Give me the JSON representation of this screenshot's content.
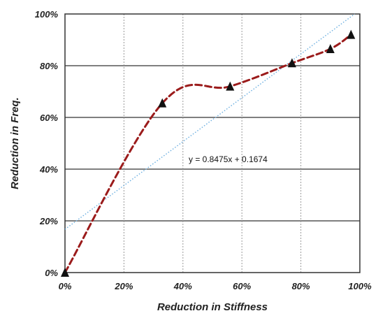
{
  "chart_data": {
    "type": "line",
    "title": "",
    "xlabel": "Reduction in Stiffness",
    "ylabel": "Reduction in Freq.",
    "xlim": [
      0,
      100
    ],
    "ylim": [
      0,
      100
    ],
    "x_ticks": [
      "0%",
      "20%",
      "40%",
      "60%",
      "80%",
      "100%"
    ],
    "y_ticks": [
      "0%",
      "20%",
      "40%",
      "60%",
      "80%",
      "100%"
    ],
    "grid": {
      "horizontal": "solid",
      "vertical": "dashed"
    },
    "series": [
      {
        "type": "scatter-smooth-line",
        "marker": "triangle",
        "color": "#9b1b1b",
        "line_style": "dashed",
        "x": [
          0,
          33,
          56,
          77,
          90,
          97
        ],
        "y": [
          0,
          65.5,
          72,
          81,
          86.5,
          92
        ]
      },
      {
        "type": "trendline",
        "color": "#6aaee0",
        "line_style": "dotted",
        "slope": 0.8475,
        "intercept": 0.1674
      }
    ],
    "annotation": "y = 0.8475x + 0.1674"
  }
}
